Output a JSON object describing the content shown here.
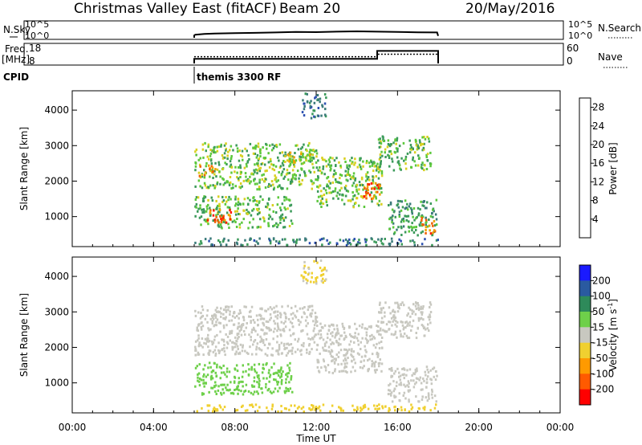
{
  "header": {
    "title": "Christmas Valley East (fitACF)",
    "beam": "Beam 20",
    "date": "20/May/2016"
  },
  "chart_data": [
    {
      "type": "line",
      "panel": "noise",
      "ylabel": "N.Sky",
      "yticks_left": [
        "10^5",
        "10^0"
      ],
      "yticks_right": [
        "10^5",
        "10^0"
      ],
      "legend": [
        "N.Search"
      ],
      "x_hours": [
        6.0,
        6.05,
        6.5,
        7,
        8,
        9,
        10,
        11,
        12,
        13,
        14,
        15,
        16,
        17,
        17.95,
        18.0
      ],
      "y_rel": [
        0.15,
        0.2,
        0.25,
        0.28,
        0.3,
        0.32,
        0.35,
        0.38,
        0.37,
        0.4,
        0.42,
        0.4,
        0.38,
        0.36,
        0.35,
        0.12
      ]
    },
    {
      "type": "line",
      "panel": "frequency / nave",
      "ylabel_line1": "Freq.",
      "ylabel_line2": "[MHz]",
      "yticks_left": [
        "18",
        "8"
      ],
      "yticks_right": [
        "60",
        "0"
      ],
      "legend": [
        "Nave"
      ],
      "series": [
        {
          "name": "Freq.",
          "x_hours": [
            6.0,
            15.0,
            15.0,
            18.0
          ],
          "y": [
            10.5,
            10.5,
            14.8,
            14.8
          ]
        },
        {
          "name": "Nave",
          "x_hours": [
            6.0,
            15.0,
            15.0,
            18.0
          ],
          "y": [
            22,
            22,
            30,
            30
          ]
        }
      ]
    },
    {
      "type": "annotation",
      "panel": "cpid",
      "label": "CPID",
      "program": "themis 3300 RF",
      "start_hour": 6.0
    },
    {
      "type": "heatmap",
      "panel": "power",
      "ylabel": "Slant Range [km]",
      "ylim": [
        200,
        4500
      ],
      "yticks": [
        "1000",
        "2000",
        "3000",
        "4000"
      ],
      "colorbar_label": "Power [dB]",
      "colorbar_ticks": [
        "4",
        "8",
        "12",
        "16",
        "20",
        "24",
        "28"
      ],
      "colorbar_range": [
        0,
        30
      ],
      "regions": [
        {
          "x": [
            6.0,
            10.8
          ],
          "y": [
            700,
            1600
          ],
          "value": 14
        },
        {
          "x": [
            6.6,
            7.8
          ],
          "y": [
            850,
            1250
          ],
          "value": 26
        },
        {
          "x": [
            6.0,
            12.0
          ],
          "y": [
            1800,
            3100
          ],
          "value": 15
        },
        {
          "x": [
            6.2,
            7.0
          ],
          "y": [
            2100,
            2500
          ],
          "value": 22
        },
        {
          "x": [
            10.5,
            12.0
          ],
          "y": [
            2500,
            2900
          ],
          "value": 18
        },
        {
          "x": [
            12.0,
            15.2
          ],
          "y": [
            1300,
            2700
          ],
          "value": 15
        },
        {
          "x": [
            14.3,
            15.2
          ],
          "y": [
            1500,
            2000
          ],
          "value": 25
        },
        {
          "x": [
            15.0,
            17.6
          ],
          "y": [
            2300,
            3300
          ],
          "value": 14
        },
        {
          "x": [
            15.5,
            17.9
          ],
          "y": [
            500,
            1500
          ],
          "value": 12
        },
        {
          "x": [
            17.1,
            17.9
          ],
          "y": [
            550,
            1000
          ],
          "value": 24
        },
        {
          "x": [
            11.2,
            12.5
          ],
          "y": [
            3800,
            4500
          ],
          "value": 8
        },
        {
          "x": [
            6.0,
            18.0
          ],
          "y": [
            220,
            420
          ],
          "value": 9
        }
      ]
    },
    {
      "type": "heatmap",
      "panel": "velocity",
      "ylabel": "Slant Range [km]",
      "xlabel": "Time UT",
      "ylim": [
        200,
        4500
      ],
      "yticks": [
        "1000",
        "2000",
        "3000",
        "4000"
      ],
      "xticks": [
        "00:00",
        "04:00",
        "08:00",
        "12:00",
        "16:00",
        "20:00",
        "00:00"
      ],
      "colorbar_label": "Velocity [m s",
      "colorbar_label_sup": "-1",
      "colorbar_label_end": "]",
      "colorbar_ticks": [
        "-200",
        "-100",
        "-50",
        "-15",
        "15",
        "50",
        "100",
        "200"
      ],
      "regions": [
        {
          "x": [
            6.0,
            10.8
          ],
          "y": [
            700,
            1600
          ],
          "value": 30
        },
        {
          "x": [
            6.0,
            12.0
          ],
          "y": [
            1800,
            3200
          ],
          "value": 0
        },
        {
          "x": [
            12.0,
            15.2
          ],
          "y": [
            1300,
            2700
          ],
          "value": 0
        },
        {
          "x": [
            15.0,
            17.6
          ],
          "y": [
            2300,
            3300
          ],
          "value": 0
        },
        {
          "x": [
            15.5,
            17.9
          ],
          "y": [
            500,
            1500
          ],
          "value": 0
        },
        {
          "x": [
            11.2,
            12.5
          ],
          "y": [
            3800,
            4500
          ],
          "value": -20
        },
        {
          "x": [
            6.0,
            18.0
          ],
          "y": [
            220,
            420
          ],
          "value": -30
        }
      ]
    }
  ]
}
